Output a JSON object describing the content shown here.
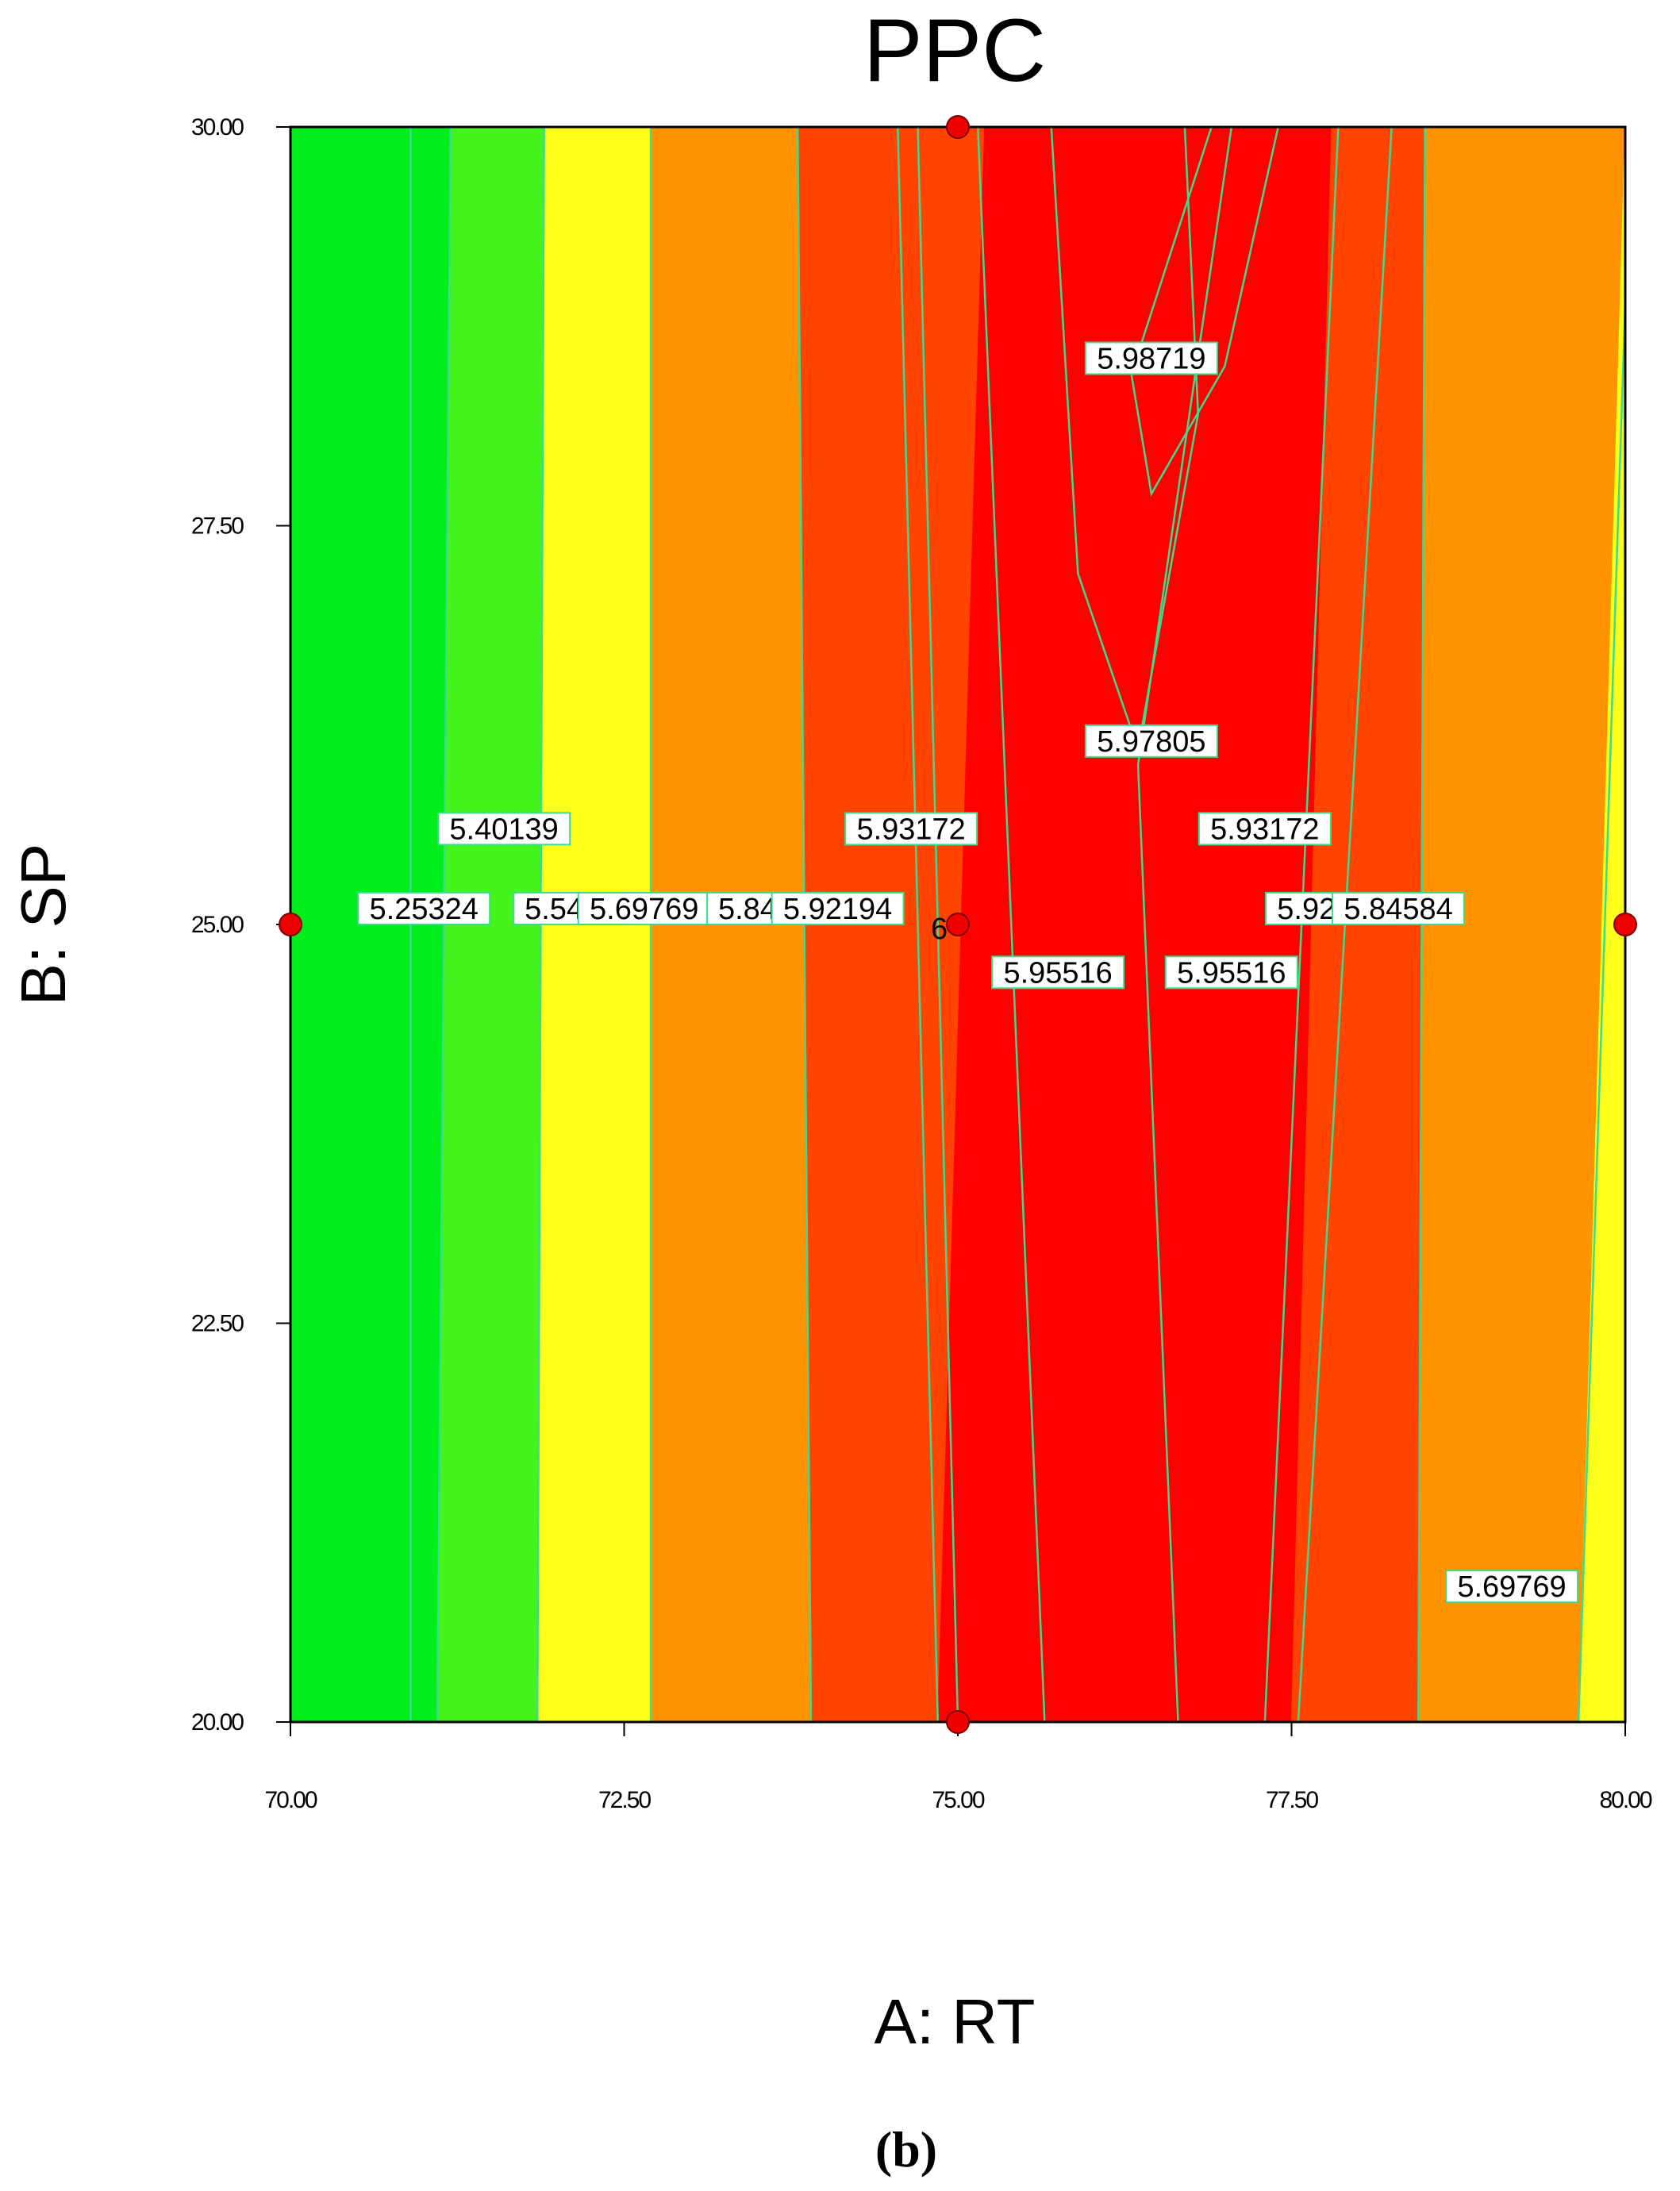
{
  "chart_data": {
    "type": "contour",
    "title": "PPC",
    "xlabel": "A: RT",
    "ylabel": "B: SP",
    "xlim": [
      70,
      80
    ],
    "ylim": [
      20,
      30
    ],
    "x_ticks": [
      "70.00",
      "72.50",
      "75.00",
      "77.50",
      "80.00"
    ],
    "y_ticks": [
      "20.00",
      "22.50",
      "25.00",
      "27.50",
      "30.00"
    ],
    "grid": false,
    "regions": [
      {
        "color": "#00ee1c",
        "x_bottom": [
          70.0,
          71.1
        ],
        "x_top": [
          70.0,
          71.2
        ]
      },
      {
        "color": "#44f41c",
        "x_bottom": [
          71.1,
          71.85
        ],
        "x_top": [
          71.2,
          71.9
        ]
      },
      {
        "color": "#ffff1c",
        "x_bottom": [
          71.85,
          72.7
        ],
        "x_top": [
          71.9,
          72.7
        ]
      },
      {
        "color": "#ff9400",
        "x_bottom": [
          72.7,
          73.9
        ],
        "x_top": [
          72.7,
          73.8
        ]
      },
      {
        "color": "#ff4400",
        "x_bottom": [
          73.9,
          74.85
        ],
        "x_top": [
          73.8,
          75.2
        ]
      },
      {
        "color": "#ff0000",
        "x_bottom": [
          74.85,
          77.5
        ],
        "x_top": [
          75.2,
          77.8
        ]
      },
      {
        "color": "#ff4400",
        "x_bottom": [
          77.5,
          78.45
        ],
        "x_top": [
          77.8,
          78.5
        ]
      },
      {
        "color": "#ff9400",
        "x_bottom": [
          78.45,
          79.65
        ],
        "x_top": [
          78.5,
          80.0
        ]
      },
      {
        "color": "#ffff1c",
        "x_bottom": [
          79.65,
          80.0
        ],
        "x_top": [
          80.0,
          80.0
        ]
      }
    ],
    "contour_lines": [
      {
        "points": [
          [
            70.9,
            30
          ],
          [
            70.9,
            20
          ]
        ]
      },
      {
        "points": [
          [
            71.2,
            30
          ],
          [
            71.1,
            20
          ]
        ]
      },
      {
        "points": [
          [
            71.9,
            30
          ],
          [
            71.85,
            20
          ]
        ]
      },
      {
        "points": [
          [
            72.7,
            30
          ],
          [
            72.7,
            20
          ]
        ]
      },
      {
        "points": [
          [
            73.8,
            30
          ],
          [
            73.9,
            20
          ]
        ]
      },
      {
        "points": [
          [
            74.55,
            30
          ],
          [
            74.85,
            20
          ]
        ]
      },
      {
        "points": [
          [
            74.7,
            30
          ],
          [
            75.0,
            20
          ]
        ]
      },
      {
        "points": [
          [
            75.15,
            30
          ],
          [
            75.65,
            20
          ]
        ]
      },
      {
        "points": [
          [
            76.7,
            30
          ],
          [
            76.8,
            28.2
          ],
          [
            76.35,
            26.1
          ],
          [
            75.9,
            27.2
          ],
          [
            75.7,
            30
          ]
        ]
      },
      {
        "points": [
          [
            76.9,
            30
          ],
          [
            76.3,
            28.45
          ],
          [
            76.45,
            27.7
          ],
          [
            77.0,
            28.5
          ],
          [
            77.4,
            30
          ]
        ]
      },
      {
        "points": [
          [
            77.05,
            30
          ],
          [
            76.35,
            26.0
          ],
          [
            76.65,
            20
          ]
        ]
      },
      {
        "points": [
          [
            77.85,
            30
          ],
          [
            77.3,
            20
          ]
        ]
      },
      {
        "points": [
          [
            78.25,
            30
          ],
          [
            77.55,
            20
          ]
        ]
      },
      {
        "points": [
          [
            78.5,
            30
          ],
          [
            78.45,
            20
          ]
        ]
      },
      {
        "points": [
          [
            80.0,
            28.9
          ],
          [
            79.65,
            20
          ]
        ]
      }
    ],
    "contour_labels": [
      {
        "text": "5.25324",
        "x": 71.0,
        "y": 25.1
      },
      {
        "text": "5.40139",
        "x": 71.6,
        "y": 25.6
      },
      {
        "text": "5.5495",
        "x": 72.1,
        "y": 25.1
      },
      {
        "text": "5.69769",
        "x": 72.65,
        "y": 25.1
      },
      {
        "text": "5.8458",
        "x": 73.55,
        "y": 25.1
      },
      {
        "text": "5.92194",
        "x": 74.1,
        "y": 25.1
      },
      {
        "text": "5.93172",
        "x": 74.65,
        "y": 25.6
      },
      {
        "text": "5.95516",
        "x": 75.75,
        "y": 24.7
      },
      {
        "text": "5.98719",
        "x": 76.45,
        "y": 28.55
      },
      {
        "text": "5.97805",
        "x": 76.45,
        "y": 26.15
      },
      {
        "text": "5.93172",
        "x": 77.3,
        "y": 25.6
      },
      {
        "text": "5.95516",
        "x": 77.05,
        "y": 24.7
      },
      {
        "text": "5.92194",
        "x": 77.8,
        "y": 25.1
      },
      {
        "text": "5.84584",
        "x": 78.3,
        "y": 25.1
      },
      {
        "text": "5.69769",
        "x": 79.15,
        "y": 20.85
      }
    ],
    "design_points": [
      {
        "x": 70,
        "y": 25
      },
      {
        "x": 75,
        "y": 30
      },
      {
        "x": 75,
        "y": 25,
        "label": "6"
      },
      {
        "x": 75,
        "y": 20
      },
      {
        "x": 80,
        "y": 25
      }
    ],
    "point_color": "#ee0000",
    "line_color": "#3cdc8c"
  },
  "caption": "(b)"
}
